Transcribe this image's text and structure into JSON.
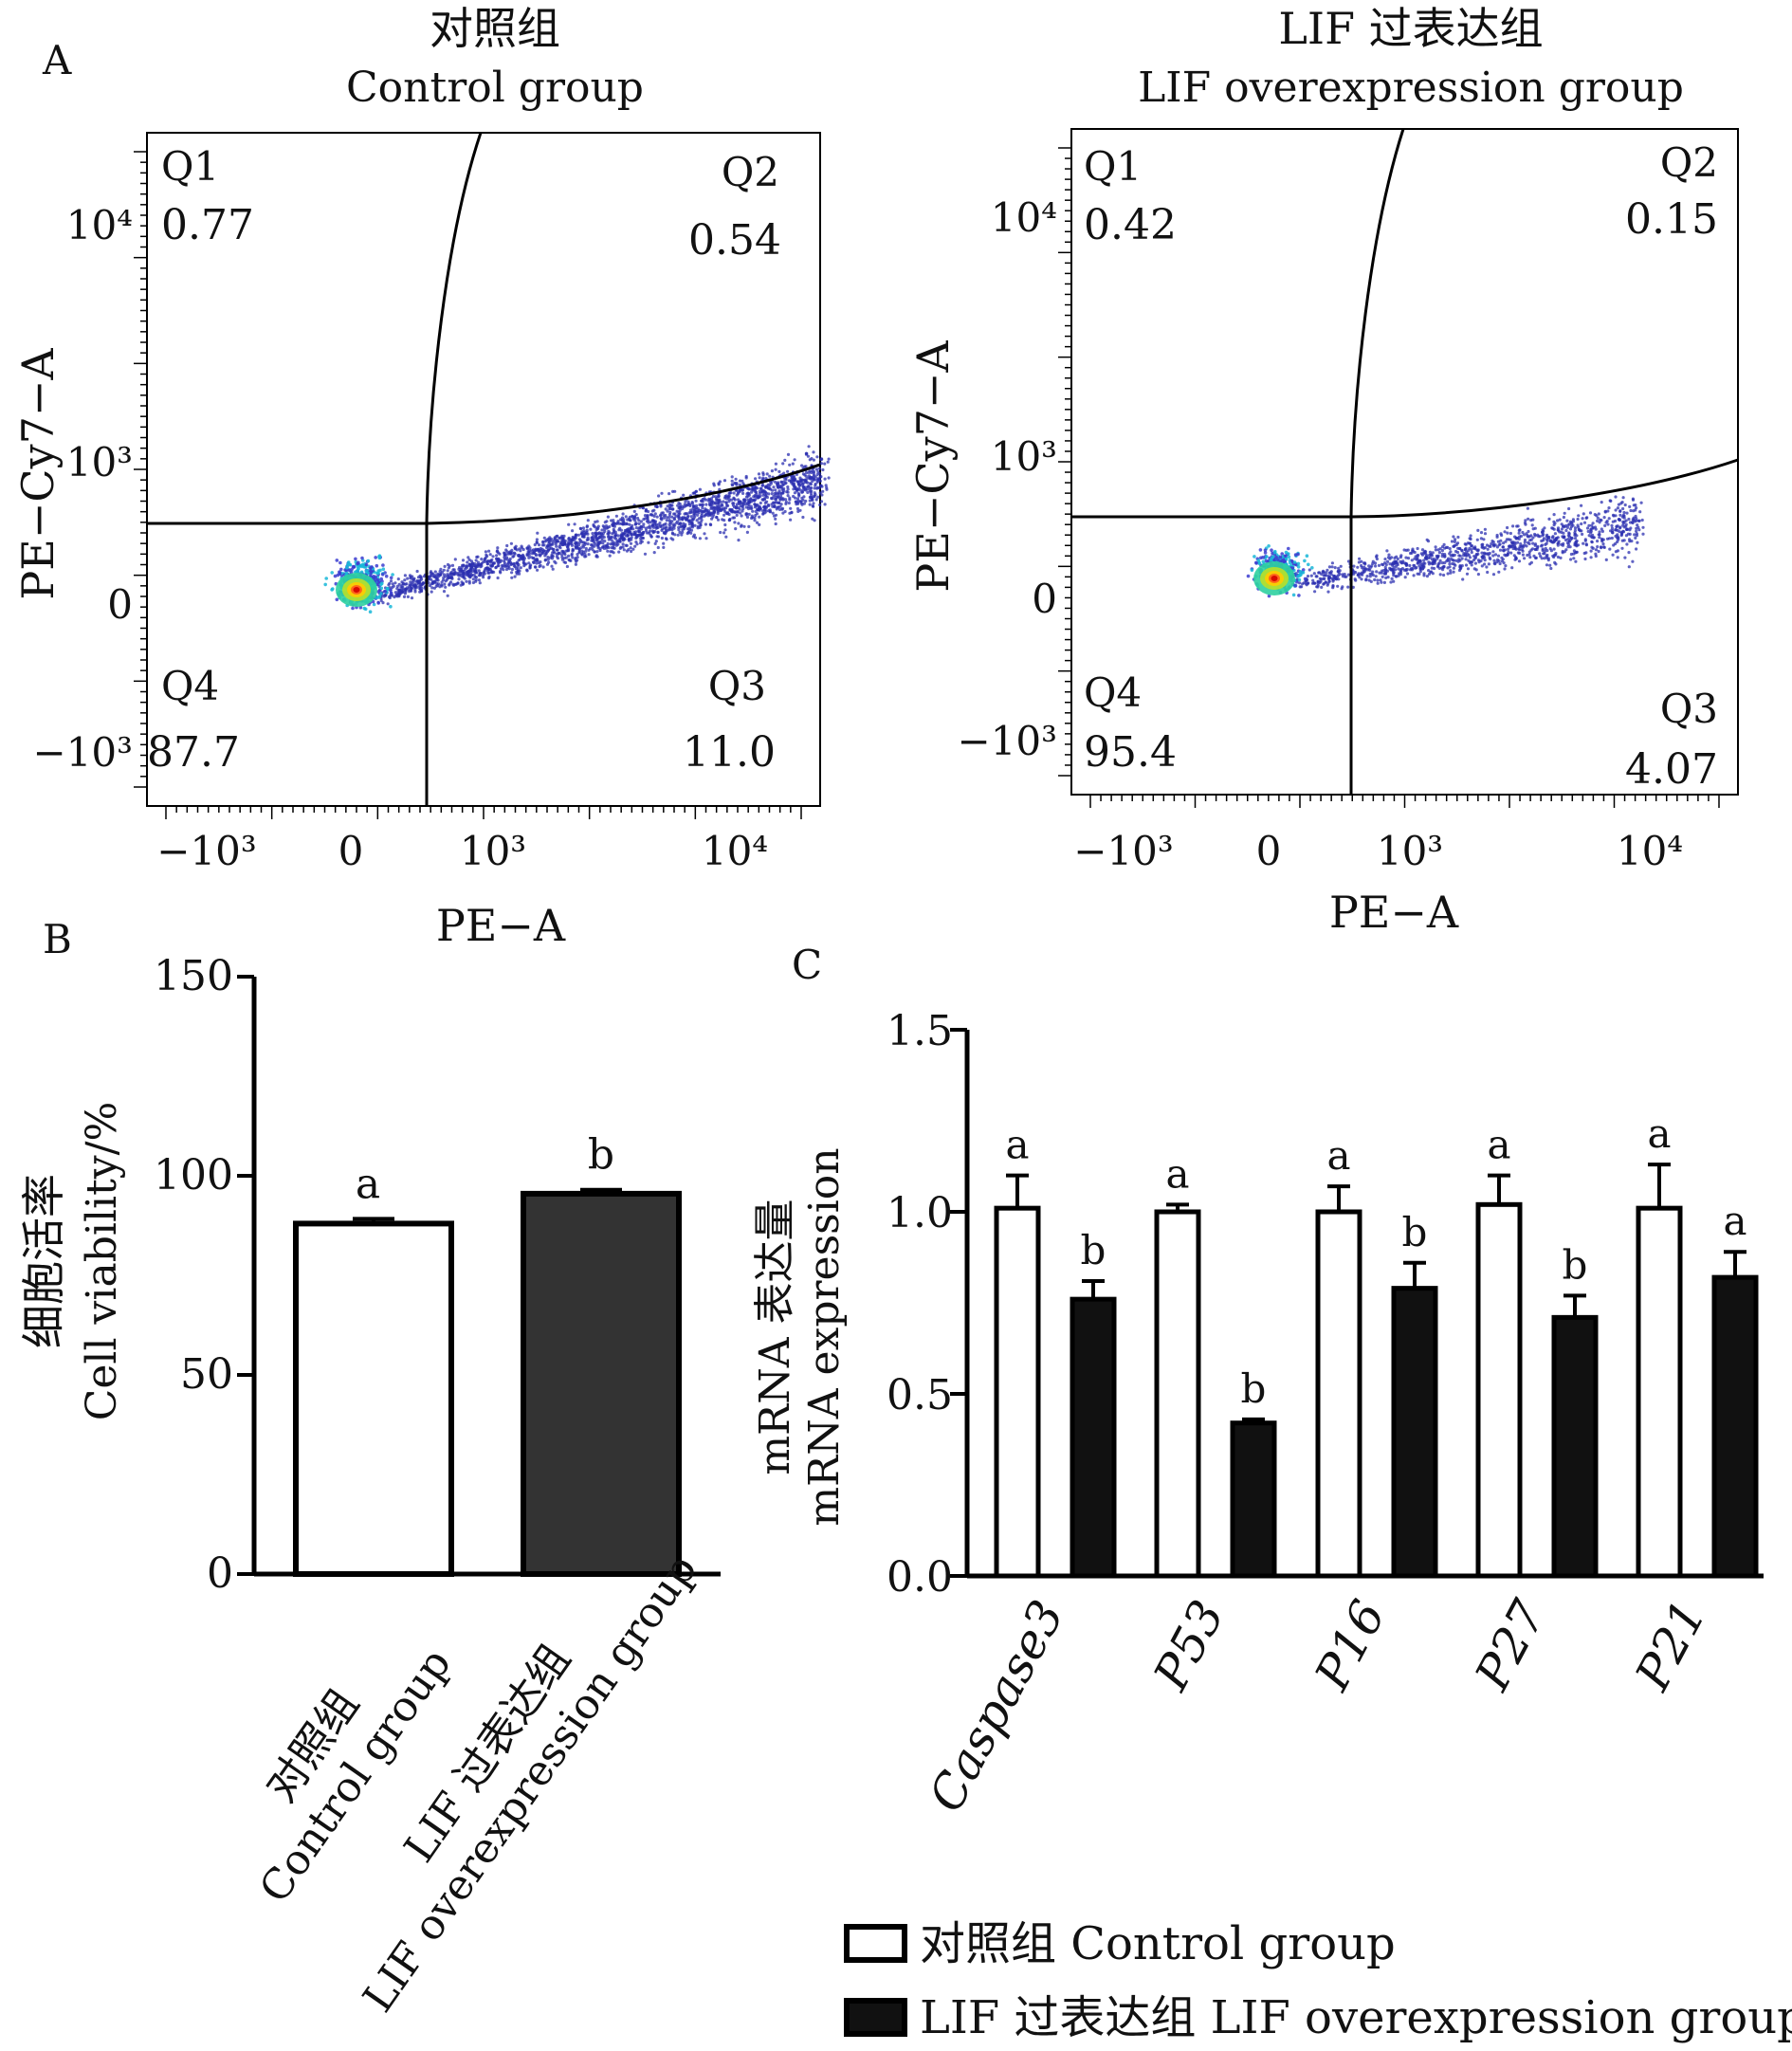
{
  "figure": {
    "panel_labels": [
      "A",
      "B",
      "C"
    ]
  },
  "chart_data": [
    {
      "type": "scatter",
      "panel": "A",
      "subtype": "flow-cytometry-quadrant",
      "title_cn": "对照组",
      "title_en": "Control group",
      "xlabel": "PE−A",
      "ylabel": "PE−Cy7−A",
      "x_ticks": [
        "−10³",
        "0",
        "10³",
        "10⁴"
      ],
      "y_ticks": [
        "10⁴",
        "10³",
        "0",
        "−10³"
      ],
      "quadrants": [
        {
          "name": "Q1",
          "value": "0.77"
        },
        {
          "name": "Q2",
          "value": "0.54"
        },
        {
          "name": "Q3",
          "value": "11.0"
        },
        {
          "name": "Q4",
          "value": "87.7"
        }
      ]
    },
    {
      "type": "scatter",
      "panel": "A",
      "subtype": "flow-cytometry-quadrant",
      "title_cn": "LIF 过表达组",
      "title_en": "LIF overexpression group",
      "xlabel": "PE−A",
      "ylabel": "PE−Cy7−A",
      "x_ticks": [
        "−10³",
        "0",
        "10³",
        "10⁴"
      ],
      "y_ticks": [
        "10⁴",
        "10³",
        "0",
        "−10³"
      ],
      "quadrants": [
        {
          "name": "Q1",
          "value": "0.42"
        },
        {
          "name": "Q2",
          "value": "0.15"
        },
        {
          "name": "Q3",
          "value": "4.07"
        },
        {
          "name": "Q4",
          "value": "95.4"
        }
      ]
    },
    {
      "type": "bar",
      "panel": "B",
      "ylabel_cn": "细胞活率",
      "ylabel_en": "Cell viability/%",
      "ylim": [
        0,
        150
      ],
      "yticks": [
        "0",
        "50",
        "100",
        "150"
      ],
      "categories": [
        {
          "cn": "对照组",
          "en": "Control group"
        },
        {
          "cn": "LIF 过表达组",
          "en": "LIF overexpression group"
        }
      ],
      "values": [
        88,
        95.5
      ],
      "errors": [
        1.2,
        1.0
      ],
      "letters": [
        "a",
        "b"
      ],
      "colors": [
        "#ffffff",
        "#333333"
      ]
    },
    {
      "type": "bar",
      "panel": "C",
      "ylabel_cn": "mRNA 表达量",
      "ylabel_en": "mRNA expression",
      "ylim": [
        0,
        1.5
      ],
      "yticks": [
        "0.0",
        "0.5",
        "1.0",
        "1.5"
      ],
      "categories": [
        "Caspase3",
        "P53",
        "P16",
        "P27",
        "P21"
      ],
      "series": [
        {
          "name": "对照组 Control group",
          "color": "#ffffff",
          "values": [
            1.01,
            1.0,
            1.0,
            1.02,
            1.01
          ],
          "errors": [
            0.09,
            0.02,
            0.07,
            0.08,
            0.12
          ],
          "letters": [
            "a",
            "a",
            "a",
            "a",
            "a"
          ]
        },
        {
          "name": "LIF 过表达组 LIF overexpression group",
          "color": "#111111",
          "values": [
            0.76,
            0.42,
            0.79,
            0.71,
            0.82
          ],
          "errors": [
            0.05,
            0.01,
            0.07,
            0.06,
            0.07
          ],
          "letters": [
            "b",
            "b",
            "b",
            "b",
            "a"
          ]
        }
      ]
    }
  ]
}
